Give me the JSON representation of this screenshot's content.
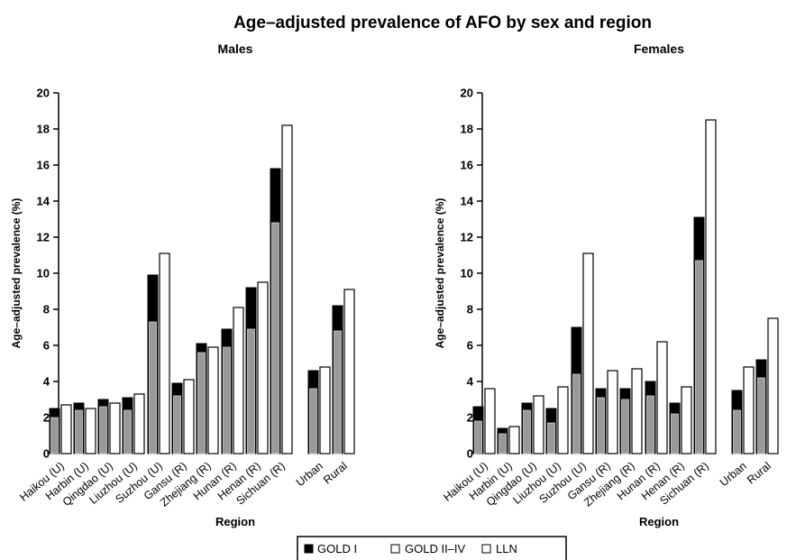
{
  "chart_data": {
    "type": "bar",
    "title": "Age–adjusted prevalence of AFO by sex and region",
    "ylabel": "Age–adjusted prevalence (%)",
    "xlabel": "Region",
    "ylim": [
      0,
      20
    ],
    "yticks": [
      "0",
      "2",
      "4",
      "6",
      "8",
      "10",
      "12",
      "14",
      "16",
      "18",
      "20"
    ],
    "grid": false,
    "legend": {
      "position": "bottom",
      "entries": [
        {
          "label": "GOLD I",
          "color": "#000000"
        },
        {
          "label": "GOLD II–IV",
          "color": "#999999"
        },
        {
          "label": "LLN",
          "color": "#ffffff"
        }
      ]
    },
    "panels": [
      {
        "subtitle": "Males",
        "categories": [
          "Haikou (U)",
          "Harbin (U)",
          "Qingdao (U)",
          "Liuzhou (U)",
          "Suzhou (U)",
          "Gansu (R)",
          "Zhejiang (R)",
          "Hunan (R)",
          "Henan (R)",
          "Sichuan (R)",
          "Urban",
          "Rural"
        ],
        "gold_i": [
          2.5,
          2.8,
          3.0,
          3.1,
          9.9,
          3.9,
          6.1,
          6.9,
          9.2,
          15.8,
          4.6,
          8.2
        ],
        "gold_ii_iv": [
          2.0,
          2.4,
          2.6,
          2.4,
          7.3,
          3.2,
          5.6,
          5.9,
          6.9,
          12.8,
          3.6,
          6.8
        ],
        "lln": [
          2.7,
          2.5,
          2.8,
          3.3,
          11.1,
          4.1,
          5.9,
          8.1,
          9.5,
          18.2,
          4.8,
          9.1
        ]
      },
      {
        "subtitle": "Females",
        "categories": [
          "Haikou (U)",
          "Harbin (U)",
          "Qingdao (U)",
          "Liuzhou (U)",
          "Suzhou (U)",
          "Gansu (R)",
          "Zhejiang (R)",
          "Hunan (R)",
          "Henan (R)",
          "Sichuan (R)",
          "Urban",
          "Rural"
        ],
        "gold_i": [
          2.6,
          1.4,
          2.8,
          2.5,
          7.0,
          3.6,
          3.6,
          4.0,
          2.8,
          13.1,
          3.5,
          5.2
        ],
        "gold_ii_iv": [
          1.8,
          1.1,
          2.4,
          1.7,
          4.4,
          3.1,
          3.0,
          3.2,
          2.2,
          10.7,
          2.4,
          4.2
        ],
        "lln": [
          3.6,
          1.5,
          3.2,
          3.7,
          11.1,
          4.6,
          4.7,
          6.2,
          3.7,
          18.5,
          4.8,
          7.5
        ]
      }
    ]
  }
}
